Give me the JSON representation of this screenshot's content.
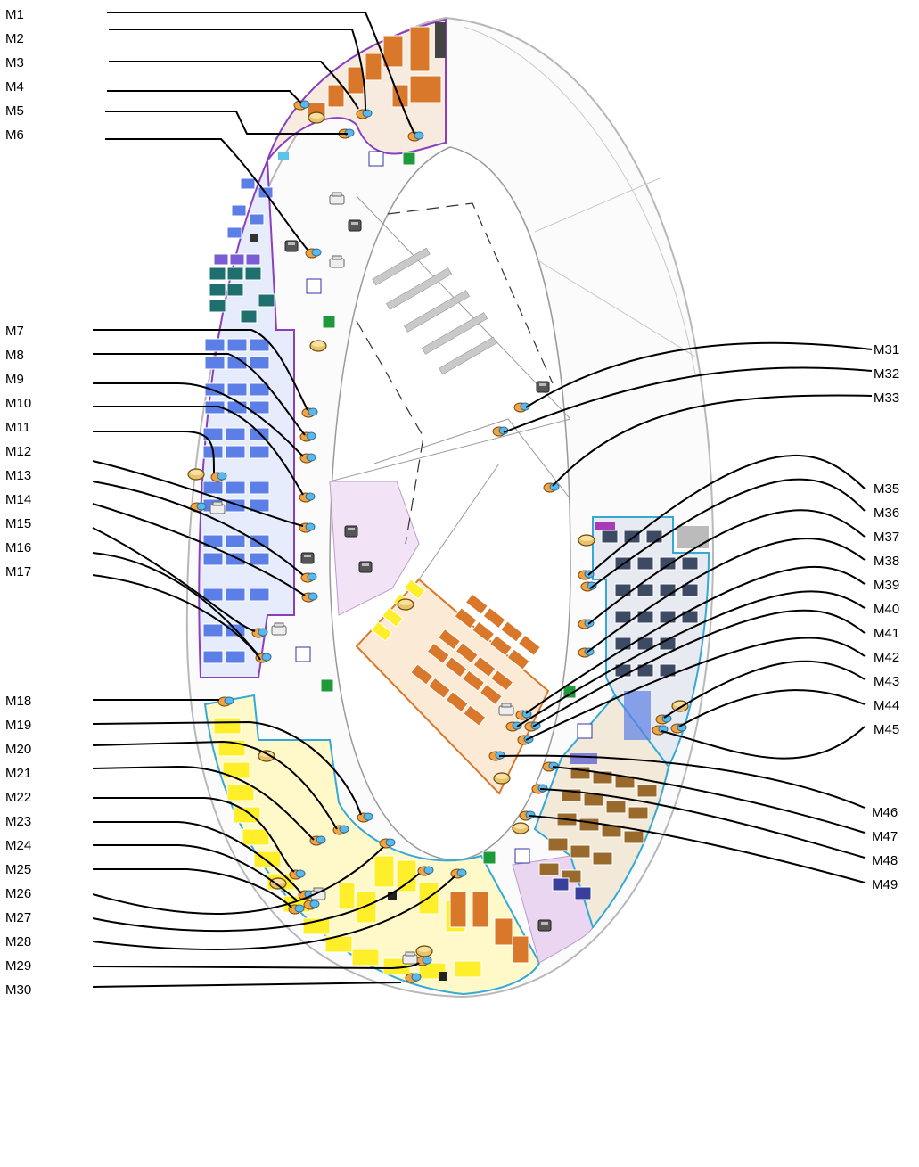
{
  "diagram": {
    "left_labels": [
      "M1",
      "M2",
      "M3",
      "M4",
      "M5",
      "M6",
      "M7",
      "M8",
      "M9",
      "M10",
      "M11",
      "M12",
      "M13",
      "M14",
      "M15",
      "M16",
      "M17",
      "M18",
      "M19",
      "M20",
      "M21",
      "M22",
      "M23",
      "M24",
      "M25",
      "M26",
      "M27",
      "M28",
      "M29",
      "M30"
    ],
    "right_labels": [
      "M31",
      "M32",
      "M33",
      "M35",
      "M36",
      "M37",
      "M38",
      "M39",
      "M40",
      "M41",
      "M42",
      "M43",
      "M44",
      "M45",
      "M46",
      "M47",
      "M48",
      "M49"
    ],
    "zone_colors": {
      "orange": "#d9772a",
      "blue": "#5b7fe6",
      "teal": "#1f6f6f",
      "yellow": "#ffee2a",
      "navy": "#3c4a63",
      "brown": "#9a6a2d",
      "purple_outline": "#8a3fbf",
      "cyan_outline": "#35a9d6",
      "lilac": "#ead6f0"
    },
    "icons": [
      "coffee-cup-icon",
      "printer-icon",
      "restroom-icon",
      "emergency-exit-icon",
      "copier-icon"
    ]
  }
}
